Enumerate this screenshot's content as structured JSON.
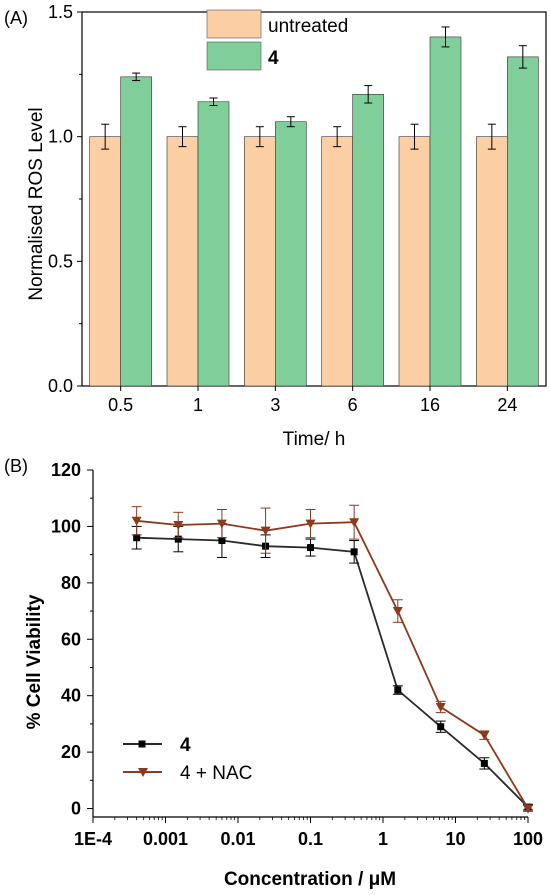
{
  "chart_data": [
    {
      "panel_label": "(A)",
      "type": "bar",
      "categories": [
        "0.5",
        "1",
        "3",
        "6",
        "16",
        "24"
      ],
      "xlabel": "Time/ h",
      "ylabel": "Normalised ROS Level",
      "ylim": [
        0,
        1.5
      ],
      "yticks": [
        "0.0",
        "0.5",
        "1.0",
        "1.5"
      ],
      "grid": false,
      "legend_position": "top-center",
      "series": [
        {
          "name": "untreated",
          "color": "#fbcfa3",
          "values": [
            1.0,
            1.0,
            1.0,
            1.0,
            1.0,
            1.0
          ],
          "errors": [
            0.05,
            0.04,
            0.04,
            0.04,
            0.05,
            0.05
          ]
        },
        {
          "name": "4",
          "color": "#80cf9a",
          "values": [
            1.24,
            1.14,
            1.06,
            1.17,
            1.4,
            1.32
          ],
          "errors": [
            0.015,
            0.015,
            0.02,
            0.035,
            0.04,
            0.045
          ]
        }
      ]
    },
    {
      "panel_label": "(B)",
      "type": "line",
      "xlabel": "Concentration / μM",
      "ylabel": "% Cell Viability",
      "xscale": "log",
      "xlim": [
        0.0001,
        100
      ],
      "ylim": [
        -3,
        120
      ],
      "xtick_values": [
        0.0001,
        0.001,
        0.01,
        0.1,
        1,
        10,
        100
      ],
      "xticks": [
        "1E-4",
        "0.001",
        "0.01",
        "0.1",
        "1",
        "10",
        "100"
      ],
      "yticks": [
        "0",
        "20",
        "40",
        "60",
        "80",
        "100",
        "120"
      ],
      "ytick_values": [
        0,
        20,
        40,
        60,
        80,
        100,
        120
      ],
      "grid": false,
      "legend_position": "bottom-left",
      "x": [
        0.0004,
        0.0015,
        0.006,
        0.024,
        0.1,
        0.4,
        1.6,
        6.25,
        25,
        100
      ],
      "series": [
        {
          "name": "4",
          "color": "#2a2a2a",
          "marker": "square",
          "values": [
            96,
            95.5,
            95,
            93,
            92.5,
            91,
            42,
            29,
            16,
            0.5
          ],
          "errors": [
            4,
            4.5,
            6,
            4,
            3,
            4,
            1.5,
            2,
            2,
            1
          ]
        },
        {
          "name": "4 + NAC",
          "color": "#8b3a1c",
          "marker": "triangle-down",
          "values": [
            102,
            100.5,
            101,
            98.5,
            101,
            101.5,
            70,
            36,
            26,
            0
          ],
          "errors": [
            5,
            4.5,
            5,
            8,
            5,
            6,
            4,
            2,
            1.5,
            1
          ]
        }
      ]
    }
  ]
}
